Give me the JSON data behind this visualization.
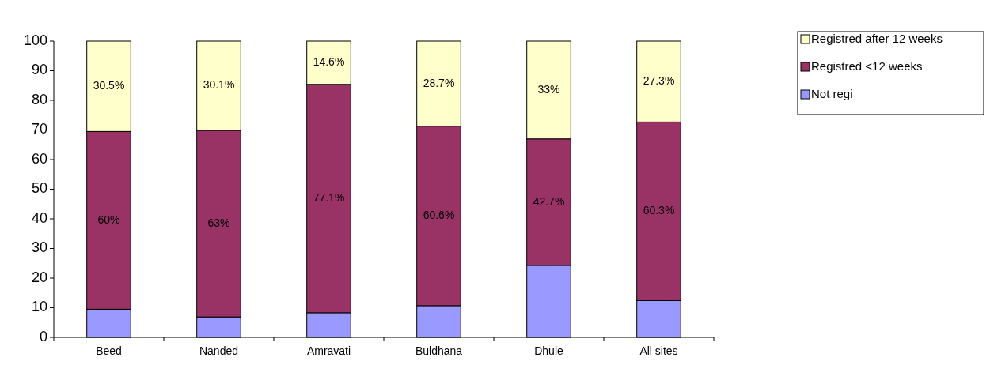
{
  "chart_data": {
    "type": "bar",
    "stacked": true,
    "categories": [
      "Beed",
      "Nanded",
      "Amravati",
      "Buldhana",
      "Dhule",
      "All sites"
    ],
    "series": [
      {
        "name": "Not regi",
        "color": "#9999ff",
        "values": [
          9.5,
          6.9,
          8.3,
          10.7,
          24.3,
          12.4
        ]
      },
      {
        "name": "Registred <12 weeks",
        "color": "#993366",
        "values": [
          60,
          63,
          77.1,
          60.6,
          42.7,
          60.3
        ],
        "value_labels": [
          "60%",
          "63%",
          "77.1%",
          "60.6%",
          "42.7%",
          "60.3%"
        ]
      },
      {
        "name": "Registred after 12 weeks",
        "color": "#ffffcc",
        "values": [
          30.5,
          30.1,
          14.6,
          28.7,
          33,
          27.3
        ],
        "value_labels": [
          "30.5%",
          "30.1%",
          "14.6%",
          "28.7%",
          "33%",
          "27.3%"
        ]
      }
    ],
    "ylim": [
      0,
      100
    ],
    "yticks": [
      0,
      10,
      20,
      30,
      40,
      50,
      60,
      70,
      80,
      90,
      100
    ],
    "grid": false,
    "legend": "top right"
  }
}
